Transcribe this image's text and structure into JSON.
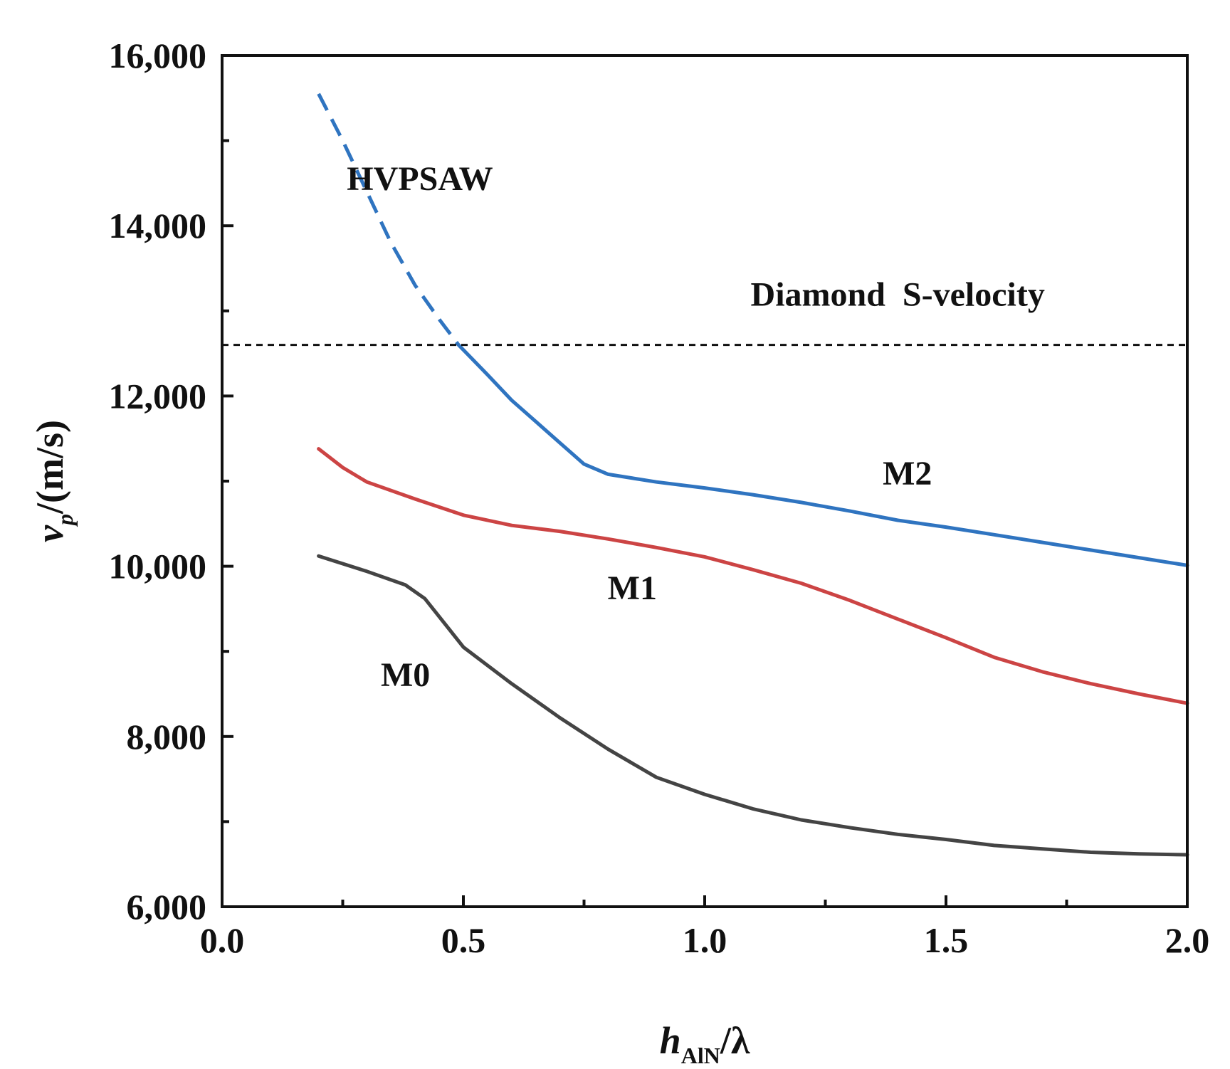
{
  "chart_data": {
    "type": "line",
    "title": "",
    "xlabel": {
      "main": "h",
      "sub": "AlN",
      "tail": "/λ"
    },
    "ylabel": {
      "main": "v",
      "sub": "p",
      "tail": "/(m/s)"
    },
    "xlim": [
      0.0,
      2.0
    ],
    "ylim": [
      6000,
      16000
    ],
    "xticks": [
      0.0,
      0.5,
      1.0,
      1.5,
      2.0
    ],
    "xtick_labels": [
      "0.0",
      "0.5",
      "1.0",
      "1.5",
      "2.0"
    ],
    "yticks": [
      6000,
      8000,
      10000,
      12000,
      14000,
      16000
    ],
    "ytick_labels": [
      "6,000",
      "8,000",
      "10,000",
      "12,000",
      "14,000",
      "16,000"
    ],
    "grid": false,
    "legend": "none",
    "series": [
      {
        "name": "M0",
        "color": "#444444",
        "style": "solid",
        "x": [
          0.2,
          0.3,
          0.38,
          0.42,
          0.5,
          0.6,
          0.7,
          0.8,
          0.9,
          1.0,
          1.1,
          1.2,
          1.3,
          1.4,
          1.5,
          1.6,
          1.7,
          1.8,
          1.9,
          2.0
        ],
        "y": [
          10120,
          9940,
          9780,
          9620,
          9050,
          8620,
          8220,
          7850,
          7520,
          7320,
          7150,
          7020,
          6930,
          6850,
          6790,
          6720,
          6680,
          6640,
          6620,
          6610
        ]
      },
      {
        "name": "M1",
        "color": "#cc4444",
        "style": "solid",
        "x": [
          0.2,
          0.25,
          0.3,
          0.4,
          0.5,
          0.6,
          0.7,
          0.8,
          0.9,
          1.0,
          1.1,
          1.2,
          1.3,
          1.4,
          1.5,
          1.6,
          1.7,
          1.8,
          1.9,
          2.0
        ],
        "y": [
          11380,
          11160,
          10990,
          10790,
          10600,
          10480,
          10410,
          10320,
          10220,
          10110,
          9960,
          9800,
          9600,
          9380,
          9160,
          8930,
          8760,
          8620,
          8500,
          8390
        ]
      },
      {
        "name": "M2",
        "color": "#2f74c0",
        "style": "solid",
        "x": [
          0.49,
          0.55,
          0.6,
          0.65,
          0.7,
          0.75,
          0.8,
          0.9,
          1.0,
          1.1,
          1.2,
          1.3,
          1.4,
          1.5,
          1.6,
          1.7,
          1.8,
          1.9,
          2.0
        ],
        "y": [
          12600,
          12250,
          11950,
          11700,
          11450,
          11200,
          11080,
          10990,
          10920,
          10840,
          10750,
          10650,
          10540,
          10460,
          10370,
          10280,
          10190,
          10100,
          10010
        ]
      },
      {
        "name": "HVPSAW",
        "color": "#2f74c0",
        "style": "dashed",
        "x": [
          0.2,
          0.25,
          0.3,
          0.35,
          0.4,
          0.45,
          0.49
        ],
        "y": [
          15550,
          15000,
          14400,
          13800,
          13300,
          12900,
          12600
        ]
      },
      {
        "name": "Diamond S-velocity",
        "color": "#111111",
        "style": "dotted",
        "x": [
          0.0,
          2.0
        ],
        "y": [
          12600,
          12600
        ]
      }
    ],
    "annotations": [
      {
        "text": "HVPSAW",
        "x": 0.41,
        "y": 14420
      },
      {
        "text": "Diamond  S-velocity",
        "x": 1.4,
        "y": 13060
      },
      {
        "text": "M2",
        "x": 1.42,
        "y": 10960
      },
      {
        "text": "M1",
        "x": 0.85,
        "y": 9610
      },
      {
        "text": "M0",
        "x": 0.38,
        "y": 8590
      }
    ]
  }
}
